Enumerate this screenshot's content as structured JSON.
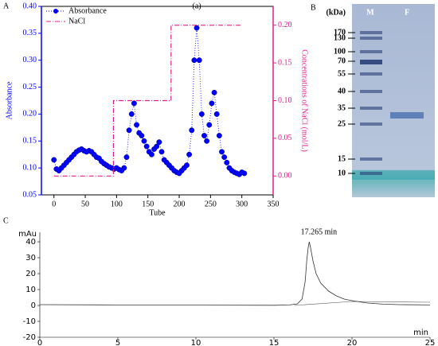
{
  "chart_data": [
    {
      "type": "scatter",
      "panel_label": "A",
      "x_label": "Tube",
      "y_label": "Absorbance",
      "y2_label": "Concentrations of NaCl (mol/L)",
      "annotation": "(a)",
      "xlim": [
        -20,
        350
      ],
      "xticks": [
        0,
        50,
        100,
        150,
        200,
        250,
        300,
        350
      ],
      "ylim": [
        0.05,
        0.4
      ],
      "yticks": [
        0.05,
        {
          "value": 0.1,
          "label": "0.10"
        },
        0.15,
        {
          "value": 0.2,
          "label": "0.20"
        },
        0.25,
        {
          "value": 0.3,
          "label": "0.30"
        },
        0.35,
        {
          "value": 0.4,
          "label": "0.40"
        }
      ],
      "y2lim": [
        -0.025,
        0.225
      ],
      "y2ticks": [
        {
          "value": 0,
          "label": "0.00"
        },
        0.05,
        {
          "value": 0.1,
          "label": "0.10"
        },
        0.15,
        {
          "value": 0.2,
          "label": "0.20"
        }
      ],
      "series": [
        {
          "name": "Absorbance",
          "color": "#0000ff",
          "x": [
            0,
            4,
            8,
            12,
            16,
            20,
            24,
            28,
            32,
            36,
            40,
            44,
            48,
            52,
            56,
            60,
            64,
            68,
            72,
            76,
            80,
            84,
            88,
            92,
            96,
            100,
            104,
            108,
            112,
            116,
            120,
            124,
            128,
            132,
            136,
            140,
            144,
            148,
            152,
            156,
            160,
            164,
            168,
            172,
            176,
            180,
            184,
            188,
            192,
            196,
            200,
            204,
            208,
            212,
            216,
            220,
            224,
            228,
            232,
            236,
            240,
            244,
            248,
            252,
            256,
            260,
            264,
            268,
            272,
            276,
            280,
            284,
            288,
            292,
            296,
            300,
            304
          ],
          "values": [
            0.115,
            0.098,
            0.095,
            0.1,
            0.105,
            0.11,
            0.115,
            0.12,
            0.125,
            0.13,
            0.133,
            0.135,
            0.132,
            0.13,
            0.132,
            0.13,
            0.125,
            0.12,
            0.118,
            0.112,
            0.108,
            0.105,
            0.102,
            0.1,
            0.098,
            0.1,
            0.097,
            0.095,
            0.1,
            0.12,
            0.17,
            0.2,
            0.22,
            0.18,
            0.165,
            0.16,
            0.15,
            0.14,
            0.13,
            0.125,
            0.135,
            0.14,
            0.148,
            0.13,
            0.115,
            0.11,
            0.105,
            0.1,
            0.095,
            0.092,
            0.09,
            0.095,
            0.1,
            0.105,
            0.125,
            0.17,
            0.3,
            0.36,
            0.3,
            0.2,
            0.16,
            0.15,
            0.18,
            0.22,
            0.24,
            0.2,
            0.16,
            0.13,
            0.12,
            0.11,
            0.1,
            0.095,
            0.092,
            0.09,
            0.088,
            0.092,
            0.09
          ]
        },
        {
          "name": "NaCl",
          "color": "#e0218a",
          "axis": "y2",
          "x": [
            0,
            95,
            95,
            187,
            187,
            300
          ],
          "values": [
            0,
            0,
            0.1,
            0.1,
            0.2,
            0.2
          ]
        }
      ]
    },
    {
      "type": "gel",
      "panel_label": "B",
      "unit_label": "(kDa)",
      "lanes": [
        "M",
        "F"
      ],
      "markers": [
        170,
        130,
        100,
        70,
        55,
        40,
        35,
        25,
        15,
        10
      ]
    },
    {
      "type": "line",
      "panel_label": "C",
      "y_unit": "mAu",
      "x_unit": "min",
      "annotation": "17.265 min",
      "xlim": [
        0,
        25
      ],
      "xticks": [
        0,
        5,
        10,
        15,
        20,
        25
      ],
      "ylim": [
        -20,
        44
      ],
      "yticks": [
        -20,
        -10,
        0,
        10,
        20,
        30,
        40
      ],
      "series": [
        {
          "color": "#333333",
          "x": [
            0,
            5,
            10,
            15,
            16,
            16.5,
            16.8,
            17,
            17.1,
            17.2,
            17.265,
            17.35,
            17.5,
            17.7,
            18,
            18.5,
            19,
            19.5,
            20,
            21,
            22,
            23,
            25
          ],
          "values": [
            0.5,
            0.3,
            0.2,
            0.1,
            0.3,
            1,
            4,
            15,
            28,
            37,
            40,
            36,
            28,
            20,
            14,
            9,
            6,
            4,
            3,
            1.5,
            0.8,
            0.5,
            0.3
          ]
        }
      ]
    }
  ]
}
